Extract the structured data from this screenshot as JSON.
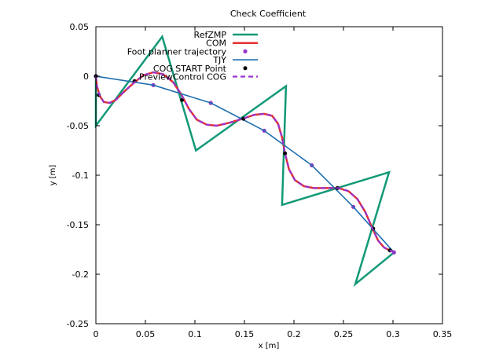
{
  "chart_data": {
    "type": "line",
    "title": "Check Coefficient",
    "xlabel": "x [m]",
    "ylabel": "y [m]",
    "xlim": [
      0,
      0.35
    ],
    "ylim": [
      -0.25,
      0.05
    ],
    "xticks": [
      0,
      0.05,
      0.1,
      0.15,
      0.2,
      0.25,
      0.3,
      0.35
    ],
    "xtick_labels": [
      "0",
      "0.05",
      "0.1",
      "0.15",
      "0.2",
      "0.25",
      "0.3",
      "0.35"
    ],
    "yticks": [
      0.05,
      0,
      -0.05,
      -0.1,
      -0.15,
      -0.2,
      -0.25
    ],
    "ytick_labels": [
      "0.05",
      "0",
      "-0.05",
      "-0.1",
      "-0.15",
      "-0.2",
      "-0.25"
    ],
    "grid": false,
    "legend_position": "top-right",
    "series": [
      {
        "name": "RefZMP",
        "kind": "line",
        "color": "#119977",
        "dash": "",
        "width": 2.5,
        "points": [
          [
            0,
            0
          ],
          [
            0,
            -0.05
          ],
          [
            0.067,
            0.04
          ],
          [
            0.101,
            -0.075
          ],
          [
            0.192,
            -0.01
          ],
          [
            0.188,
            -0.13
          ],
          [
            0.296,
            -0.097
          ],
          [
            0.262,
            -0.21
          ],
          [
            0.301,
            -0.178
          ]
        ]
      },
      {
        "name": "COM",
        "kind": "line",
        "color": "#e53030",
        "dash": "",
        "width": 2.5,
        "points": [
          [
            0,
            0
          ],
          [
            0.001,
            -0.01
          ],
          [
            0.004,
            -0.02
          ],
          [
            0.008,
            -0.026
          ],
          [
            0.014,
            -0.027
          ],
          [
            0.02,
            -0.024
          ],
          [
            0.028,
            -0.016
          ],
          [
            0.038,
            -0.007
          ],
          [
            0.048,
            0.001
          ],
          [
            0.058,
            0.004
          ],
          [
            0.068,
            0.002
          ],
          [
            0.078,
            -0.006
          ],
          [
            0.086,
            -0.018
          ],
          [
            0.094,
            -0.033
          ],
          [
            0.102,
            -0.044
          ],
          [
            0.112,
            -0.049
          ],
          [
            0.122,
            -0.05
          ],
          [
            0.135,
            -0.047
          ],
          [
            0.148,
            -0.043
          ],
          [
            0.16,
            -0.039
          ],
          [
            0.17,
            -0.038
          ],
          [
            0.178,
            -0.04
          ],
          [
            0.184,
            -0.048
          ],
          [
            0.188,
            -0.062
          ],
          [
            0.191,
            -0.078
          ],
          [
            0.195,
            -0.094
          ],
          [
            0.201,
            -0.105
          ],
          [
            0.21,
            -0.111
          ],
          [
            0.22,
            -0.113
          ],
          [
            0.233,
            -0.113
          ],
          [
            0.245,
            -0.113
          ],
          [
            0.255,
            -0.116
          ],
          [
            0.264,
            -0.124
          ],
          [
            0.272,
            -0.137
          ],
          [
            0.279,
            -0.153
          ],
          [
            0.285,
            -0.166
          ],
          [
            0.291,
            -0.173
          ],
          [
            0.297,
            -0.176
          ],
          [
            0.301,
            -0.177
          ]
        ]
      },
      {
        "name": "Foot planner trajectory",
        "kind": "points",
        "color": "#9933cc",
        "radius": 2.6,
        "points": [
          [
            0,
            0
          ],
          [
            0.058,
            -0.009
          ],
          [
            0.116,
            -0.027
          ],
          [
            0.17,
            -0.055
          ],
          [
            0.218,
            -0.09
          ],
          [
            0.26,
            -0.132
          ],
          [
            0.301,
            -0.178
          ]
        ]
      },
      {
        "name": "TJY",
        "kind": "line",
        "color": "#1f6fb0",
        "dash": "",
        "width": 1.6,
        "points": [
          [
            0,
            0
          ],
          [
            0.058,
            -0.009
          ],
          [
            0.116,
            -0.027
          ],
          [
            0.17,
            -0.055
          ],
          [
            0.218,
            -0.09
          ],
          [
            0.26,
            -0.132
          ],
          [
            0.301,
            -0.178
          ]
        ]
      },
      {
        "name": "COG  START Point",
        "kind": "points",
        "color": "#000000",
        "radius": 2.5,
        "points": [
          [
            0,
            0
          ],
          [
            0.003,
            -0.019
          ],
          [
            0.039,
            -0.005
          ],
          [
            0.087,
            -0.024
          ],
          [
            0.149,
            -0.043
          ],
          [
            0.191,
            -0.078
          ],
          [
            0.244,
            -0.113
          ],
          [
            0.28,
            -0.154
          ],
          [
            0.297,
            -0.176
          ]
        ]
      },
      {
        "name": "PreviewControl COG",
        "kind": "line",
        "color": "#9933cc",
        "dash": "6,4",
        "width": 2.2,
        "points": [
          [
            0,
            0
          ],
          [
            0.001,
            -0.01
          ],
          [
            0.004,
            -0.02
          ],
          [
            0.008,
            -0.026
          ],
          [
            0.014,
            -0.027
          ],
          [
            0.02,
            -0.024
          ],
          [
            0.028,
            -0.016
          ],
          [
            0.038,
            -0.007
          ],
          [
            0.048,
            0.001
          ],
          [
            0.058,
            0.004
          ],
          [
            0.068,
            0.002
          ],
          [
            0.078,
            -0.006
          ],
          [
            0.086,
            -0.018
          ],
          [
            0.094,
            -0.033
          ],
          [
            0.102,
            -0.044
          ],
          [
            0.112,
            -0.049
          ],
          [
            0.122,
            -0.05
          ],
          [
            0.135,
            -0.047
          ],
          [
            0.148,
            -0.043
          ],
          [
            0.16,
            -0.039
          ],
          [
            0.17,
            -0.038
          ],
          [
            0.178,
            -0.04
          ],
          [
            0.184,
            -0.048
          ],
          [
            0.188,
            -0.062
          ],
          [
            0.191,
            -0.078
          ],
          [
            0.195,
            -0.094
          ],
          [
            0.201,
            -0.105
          ],
          [
            0.21,
            -0.111
          ],
          [
            0.22,
            -0.113
          ],
          [
            0.233,
            -0.113
          ],
          [
            0.245,
            -0.113
          ],
          [
            0.255,
            -0.116
          ],
          [
            0.264,
            -0.124
          ],
          [
            0.272,
            -0.137
          ],
          [
            0.279,
            -0.153
          ],
          [
            0.285,
            -0.166
          ],
          [
            0.291,
            -0.173
          ],
          [
            0.297,
            -0.176
          ],
          [
            0.301,
            -0.177
          ]
        ]
      }
    ]
  }
}
